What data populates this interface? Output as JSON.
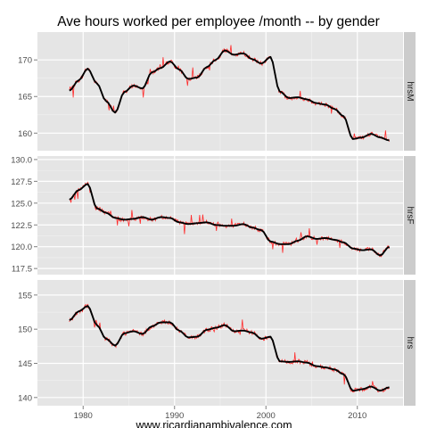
{
  "chart_data": {
    "type": "line",
    "title": "Ave hours worked per employee /month -- by gender",
    "xlabel": "www.ricardianambivalence.com",
    "ylabel": "",
    "grid": true,
    "x_ticks": [
      "1980",
      "1990",
      "2000",
      "2010"
    ],
    "xlim": [
      1975,
      2015
    ],
    "series_style": [
      {
        "role": "raw",
        "color": "#ff2a2a"
      },
      {
        "role": "smoothed",
        "color": "#000000"
      }
    ],
    "panels": [
      {
        "facet_label": "hrsM",
        "ylim": [
          157.6,
          173.8
        ],
        "y_ticks": [
          160,
          165,
          170
        ],
        "y_tick_labels": [
          "160",
          "165",
          "170"
        ],
        "x": [
          1978.5,
          1979.5,
          1980.5,
          1981.5,
          1982.5,
          1983.5,
          1984.5,
          1985.5,
          1986.5,
          1987.5,
          1988.5,
          1989.5,
          1990.5,
          1991.5,
          1992.5,
          1993.5,
          1994.5,
          1995.5,
          1996.5,
          1997.5,
          1998.5,
          1999.5,
          2000.5,
          2001.5,
          2002.5,
          2003.5,
          2004.5,
          2005.5,
          2006.5,
          2007.5,
          2008.5,
          2009.5,
          2010.5,
          2011.5,
          2012.5,
          2013.5
        ],
        "y": [
          165.8,
          167.2,
          168.8,
          166.8,
          164.4,
          162.8,
          165.6,
          166.5,
          166.1,
          168.3,
          168.9,
          169.8,
          168.7,
          167.4,
          167.6,
          169.0,
          170.0,
          171.3,
          170.7,
          170.9,
          170.1,
          169.5,
          170.4,
          165.7,
          164.8,
          164.9,
          164.6,
          164.1,
          163.9,
          163.3,
          162.3,
          159.2,
          159.4,
          159.9,
          159.4,
          159.0
        ]
      },
      {
        "facet_label": "hrsF",
        "ylim": [
          116.8,
          130.4
        ],
        "y_ticks": [
          117.5,
          120.0,
          122.5,
          125.0,
          127.5,
          130.0
        ],
        "y_tick_labels": [
          "117.5",
          "120.0",
          "122.5",
          "125.0",
          "127.5",
          "130.0"
        ],
        "x": [
          1978.5,
          1979.5,
          1980.5,
          1981.5,
          1982.5,
          1983.5,
          1984.5,
          1985.5,
          1986.5,
          1987.5,
          1988.5,
          1989.5,
          1990.5,
          1991.5,
          1992.5,
          1993.5,
          1994.5,
          1995.5,
          1996.5,
          1997.5,
          1998.5,
          1999.5,
          2000.5,
          2001.5,
          2002.5,
          2003.5,
          2004.5,
          2005.5,
          2006.5,
          2007.5,
          2008.5,
          2009.5,
          2010.5,
          2011.5,
          2012.5,
          2013.5
        ],
        "y": [
          125.4,
          126.5,
          127.2,
          124.4,
          123.9,
          123.3,
          123.1,
          123.2,
          123.4,
          123.1,
          123.4,
          123.3,
          122.8,
          122.6,
          122.7,
          122.8,
          122.5,
          122.4,
          122.4,
          122.6,
          122.2,
          121.9,
          120.6,
          120.3,
          120.3,
          120.7,
          121.2,
          120.9,
          121.0,
          120.8,
          120.5,
          119.8,
          119.6,
          119.7,
          119.0,
          120.0
        ]
      },
      {
        "facet_label": "hrs",
        "ylim": [
          138.8,
          157.2
        ],
        "y_ticks": [
          140,
          145,
          150,
          155
        ],
        "y_tick_labels": [
          "140",
          "145",
          "150",
          "155"
        ],
        "x": [
          1978.5,
          1979.5,
          1980.5,
          1981.5,
          1982.5,
          1983.5,
          1984.5,
          1985.5,
          1986.5,
          1987.5,
          1988.5,
          1989.5,
          1990.5,
          1991.5,
          1992.5,
          1993.5,
          1994.5,
          1995.5,
          1996.5,
          1997.5,
          1998.5,
          1999.5,
          2000.5,
          2001.5,
          2002.5,
          2003.5,
          2004.5,
          2005.5,
          2006.5,
          2007.5,
          2008.5,
          2009.5,
          2010.5,
          2011.5,
          2012.5,
          2013.5
        ],
        "y": [
          151.3,
          152.6,
          153.4,
          150.6,
          148.6,
          147.6,
          149.4,
          149.7,
          149.3,
          150.4,
          151.0,
          151.0,
          149.8,
          148.8,
          148.9,
          149.9,
          150.2,
          150.6,
          149.7,
          149.8,
          149.5,
          148.6,
          148.9,
          145.3,
          145.2,
          145.3,
          145.1,
          144.6,
          144.4,
          144.1,
          143.4,
          141.0,
          141.2,
          141.6,
          141.0,
          141.5
        ]
      }
    ]
  }
}
